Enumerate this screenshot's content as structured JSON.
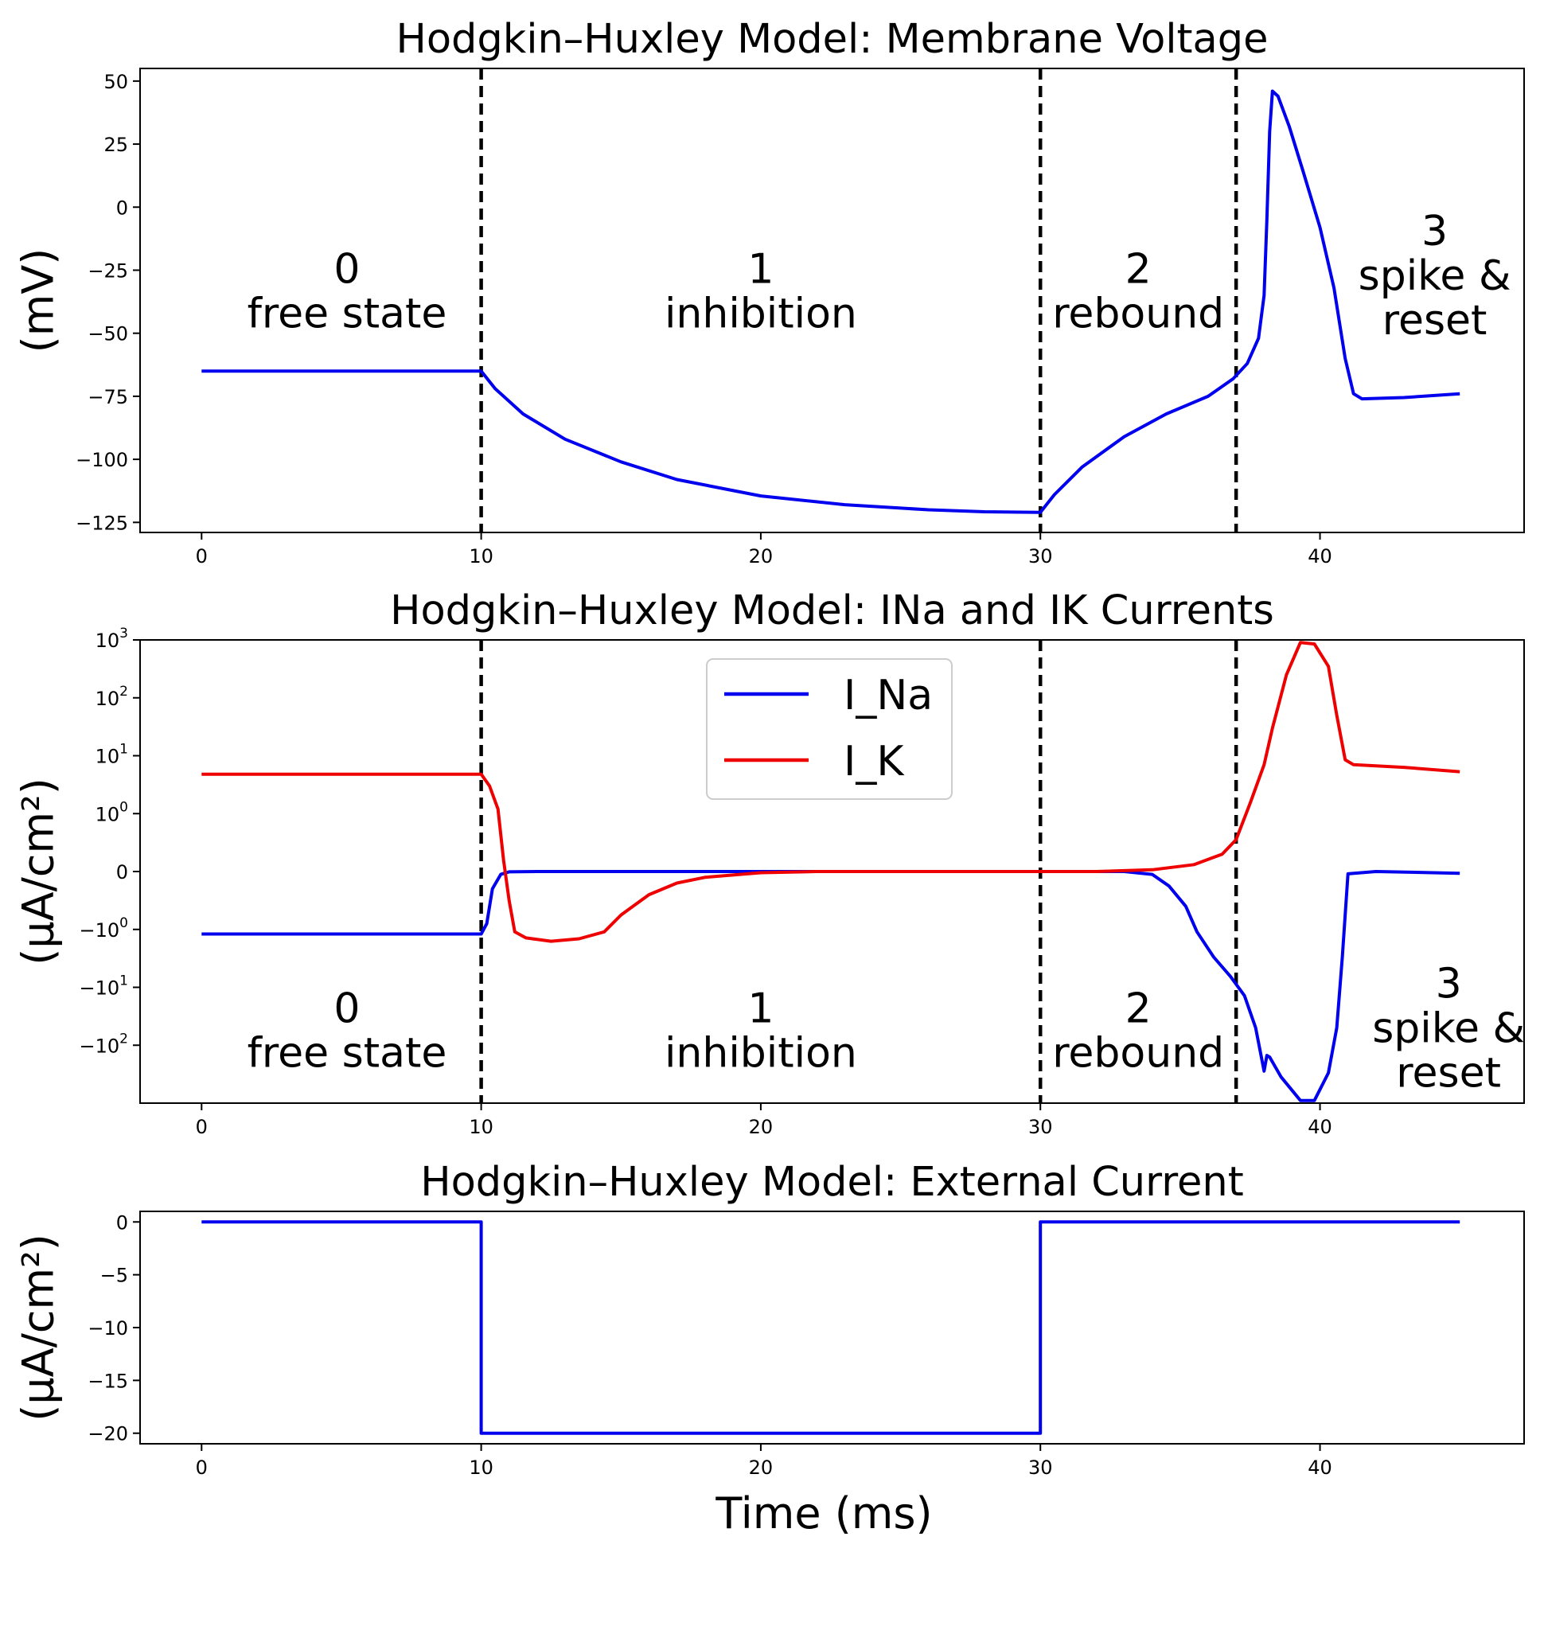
{
  "chart_data": [
    {
      "type": "line",
      "title": "Hodgkin–Huxley Model: Membrane Voltage",
      "xlabel": "",
      "ylabel": "(mV)",
      "xlim": [
        -2.2,
        47.3
      ],
      "ylim": [
        -129,
        55
      ],
      "xticks": [
        0,
        10,
        20,
        30,
        40
      ],
      "yticks": [
        {
          "v": 50,
          "label": "50"
        },
        {
          "v": 25,
          "label": "25"
        },
        {
          "v": 0,
          "label": "0"
        },
        {
          "v": -25,
          "label": "−25"
        },
        {
          "v": -50,
          "label": "−50"
        },
        {
          "v": -75,
          "label": "−75"
        },
        {
          "v": -100,
          "label": "−100"
        },
        {
          "v": -125,
          "label": "−125"
        }
      ],
      "grid": false,
      "phase_boundaries": [
        10,
        30,
        37
      ],
      "phase_labels": [
        {
          "num": "0",
          "lines": [
            "free state"
          ],
          "x": 5.2,
          "y": -30
        },
        {
          "num": "1",
          "lines": [
            "inhibition"
          ],
          "x": 20,
          "y": -30
        },
        {
          "num": "2",
          "lines": [
            "rebound"
          ],
          "x": 33.5,
          "y": -30
        },
        {
          "num": "3",
          "lines": [
            "spike &",
            "reset"
          ],
          "x": 44.1,
          "y": -15
        }
      ],
      "series": [
        {
          "color": "#0000ee",
          "points": [
            [
              0,
              -65
            ],
            [
              10,
              -65
            ],
            [
              10.5,
              -72
            ],
            [
              11.5,
              -82
            ],
            [
              13,
              -92
            ],
            [
              15,
              -101
            ],
            [
              17,
              -108
            ],
            [
              20,
              -114.5
            ],
            [
              23,
              -118
            ],
            [
              26,
              -120
            ],
            [
              28,
              -120.8
            ],
            [
              30,
              -121
            ],
            [
              30.5,
              -114
            ],
            [
              31.5,
              -103
            ],
            [
              33,
              -91
            ],
            [
              34.5,
              -82
            ],
            [
              36,
              -75
            ],
            [
              36.9,
              -68
            ],
            [
              37.4,
              -62
            ],
            [
              37.8,
              -52
            ],
            [
              38,
              -35
            ],
            [
              38.1,
              -5
            ],
            [
              38.2,
              30
            ],
            [
              38.3,
              46
            ],
            [
              38.5,
              44
            ],
            [
              38.9,
              32
            ],
            [
              39.4,
              14
            ],
            [
              40,
              -8
            ],
            [
              40.5,
              -32
            ],
            [
              40.9,
              -60
            ],
            [
              41.2,
              -74
            ],
            [
              41.5,
              -76
            ],
            [
              43,
              -75.5
            ],
            [
              45,
              -74
            ]
          ]
        }
      ]
    },
    {
      "type": "line",
      "title": "Hodgkin–Huxley Model: INa and IK Currents",
      "xlabel": "",
      "ylabel": "(μA/cm²)",
      "yscale": "symlog",
      "xlim": [
        -2.2,
        47.3
      ],
      "ylim": [
        -1000,
        1000
      ],
      "xticks": [
        0,
        10,
        20,
        30,
        40
      ],
      "yticks": [
        {
          "v": 1000,
          "label": "10",
          "exp": "3"
        },
        {
          "v": 100,
          "label": "10",
          "exp": "2"
        },
        {
          "v": 10,
          "label": "10",
          "exp": "1"
        },
        {
          "v": 1,
          "label": "10",
          "exp": "0"
        },
        {
          "v": 0,
          "label": "0",
          "exp": ""
        },
        {
          "v": -1,
          "label": "−10",
          "exp": "0"
        },
        {
          "v": -10,
          "label": "−10",
          "exp": "1"
        },
        {
          "v": -100,
          "label": "−10",
          "exp": "2"
        }
      ],
      "grid": false,
      "legend": {
        "position": "upper-center",
        "entries": [
          {
            "name": "I_Na",
            "color": "#0000ee"
          },
          {
            "name": "I_K",
            "color": "#ee0000"
          }
        ]
      },
      "phase_boundaries": [
        10,
        30,
        37
      ],
      "phase_labels": [
        {
          "num": "0",
          "lines": [
            "free state"
          ],
          "x": 5.2,
          "y": -40
        },
        {
          "num": "1",
          "lines": [
            "inhibition"
          ],
          "x": 20,
          "y": -40
        },
        {
          "num": "2",
          "lines": [
            "rebound"
          ],
          "x": 33.5,
          "y": -40
        },
        {
          "num": "3",
          "lines": [
            "spike &",
            "reset"
          ],
          "x": 44.6,
          "y": -15
        }
      ],
      "series": [
        {
          "name": "I_Na",
          "color": "#0000ee",
          "points": [
            [
              0,
              -1.2
            ],
            [
              10,
              -1.2
            ],
            [
              10.2,
              -0.9
            ],
            [
              10.4,
              -0.3
            ],
            [
              10.7,
              -0.05
            ],
            [
              11,
              -0.005
            ],
            [
              12,
              0
            ],
            [
              30,
              0
            ],
            [
              33,
              0
            ],
            [
              34,
              -0.05
            ],
            [
              34.6,
              -0.25
            ],
            [
              35.2,
              -0.6
            ],
            [
              35.6,
              -1.1
            ],
            [
              36.2,
              -3
            ],
            [
              36.8,
              -6.5
            ],
            [
              37.3,
              -14
            ],
            [
              37.7,
              -50
            ],
            [
              38,
              -280
            ],
            [
              38.1,
              -150
            ],
            [
              38.2,
              -160
            ],
            [
              38.6,
              -350
            ],
            [
              39.3,
              -900
            ],
            [
              39.8,
              -900
            ],
            [
              40.3,
              -300
            ],
            [
              40.6,
              -50
            ],
            [
              40.8,
              -3
            ],
            [
              41,
              -0.04
            ],
            [
              42,
              0
            ],
            [
              45,
              -0.03
            ]
          ]
        },
        {
          "name": "I_K",
          "color": "#ee0000",
          "points": [
            [
              0,
              4.8
            ],
            [
              10,
              4.8
            ],
            [
              10.3,
              3
            ],
            [
              10.6,
              1.2
            ],
            [
              10.8,
              0.2
            ],
            [
              11,
              -0.5
            ],
            [
              11.2,
              -1.1
            ],
            [
              11.6,
              -1.4
            ],
            [
              12.5,
              -1.6
            ],
            [
              13.5,
              -1.45
            ],
            [
              14.4,
              -1.1
            ],
            [
              15,
              -0.75
            ],
            [
              16,
              -0.4
            ],
            [
              17,
              -0.2
            ],
            [
              18,
              -0.1
            ],
            [
              20,
              -0.02
            ],
            [
              22,
              0
            ],
            [
              30,
              0
            ],
            [
              32,
              0
            ],
            [
              34,
              0.03
            ],
            [
              35.5,
              0.12
            ],
            [
              36.5,
              0.3
            ],
            [
              37,
              0.55
            ],
            [
              37.5,
              1.5
            ],
            [
              38,
              7
            ],
            [
              38.3,
              30
            ],
            [
              38.8,
              250
            ],
            [
              39.3,
              900
            ],
            [
              39.8,
              850
            ],
            [
              40.3,
              350
            ],
            [
              40.6,
              50
            ],
            [
              40.9,
              8.5
            ],
            [
              41.2,
              7
            ],
            [
              43,
              6.3
            ],
            [
              45,
              5.3
            ]
          ]
        }
      ]
    },
    {
      "type": "line",
      "title": "Hodgkin–Huxley Model: External Current",
      "xlabel": "Time (ms)",
      "ylabel": "(μA/cm²)",
      "xlim": [
        -2.2,
        47.3
      ],
      "ylim": [
        -21,
        1
      ],
      "xticks": [
        0,
        10,
        20,
        30,
        40
      ],
      "yticks": [
        {
          "v": 0,
          "label": "0"
        },
        {
          "v": -5,
          "label": "−5"
        },
        {
          "v": -10,
          "label": "−10"
        },
        {
          "v": -15,
          "label": "−15"
        },
        {
          "v": -20,
          "label": "−20"
        }
      ],
      "grid": false,
      "series": [
        {
          "color": "#0000ee",
          "points": [
            [
              0,
              0
            ],
            [
              10,
              0
            ],
            [
              10,
              -20
            ],
            [
              30,
              -20
            ],
            [
              30,
              0
            ],
            [
              45,
              0
            ]
          ]
        }
      ]
    }
  ]
}
